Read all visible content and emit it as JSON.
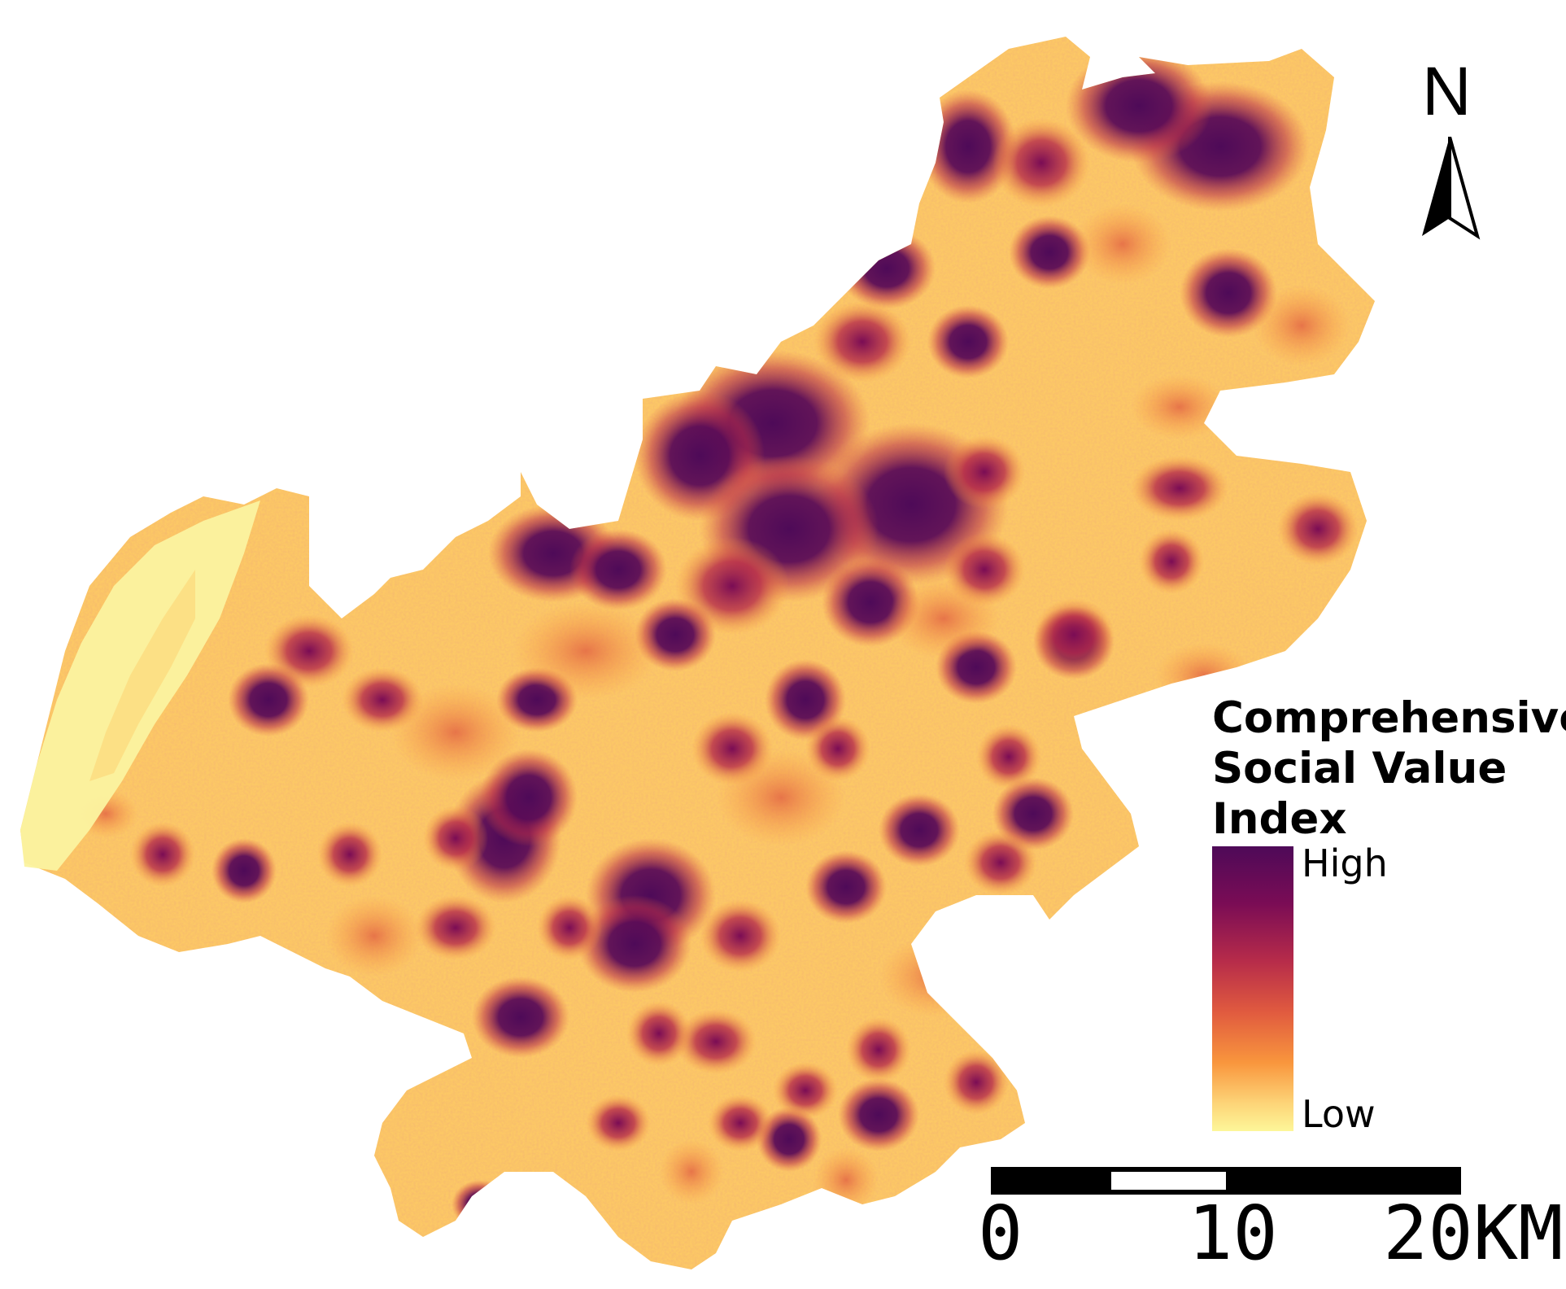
{
  "map": {
    "region_fill_colors": [
      "#fdf699",
      "#fdd377",
      "#f9963d",
      "#e05a3f",
      "#b62b4a",
      "#7a0c55",
      "#4e0a58"
    ],
    "river_color": "#fbf3a0"
  },
  "north_arrow": {
    "label": "N"
  },
  "legend": {
    "title_lines": [
      "Comprehensive",
      "Social  Value",
      "Index"
    ],
    "high_label": "High",
    "low_label": "Low",
    "colors": {
      "high": "#4e0a58",
      "mid": "#e05a3f",
      "low": "#fdf699"
    }
  },
  "scale_bar": {
    "ticks": [
      "0",
      "10",
      "20KM"
    ]
  }
}
